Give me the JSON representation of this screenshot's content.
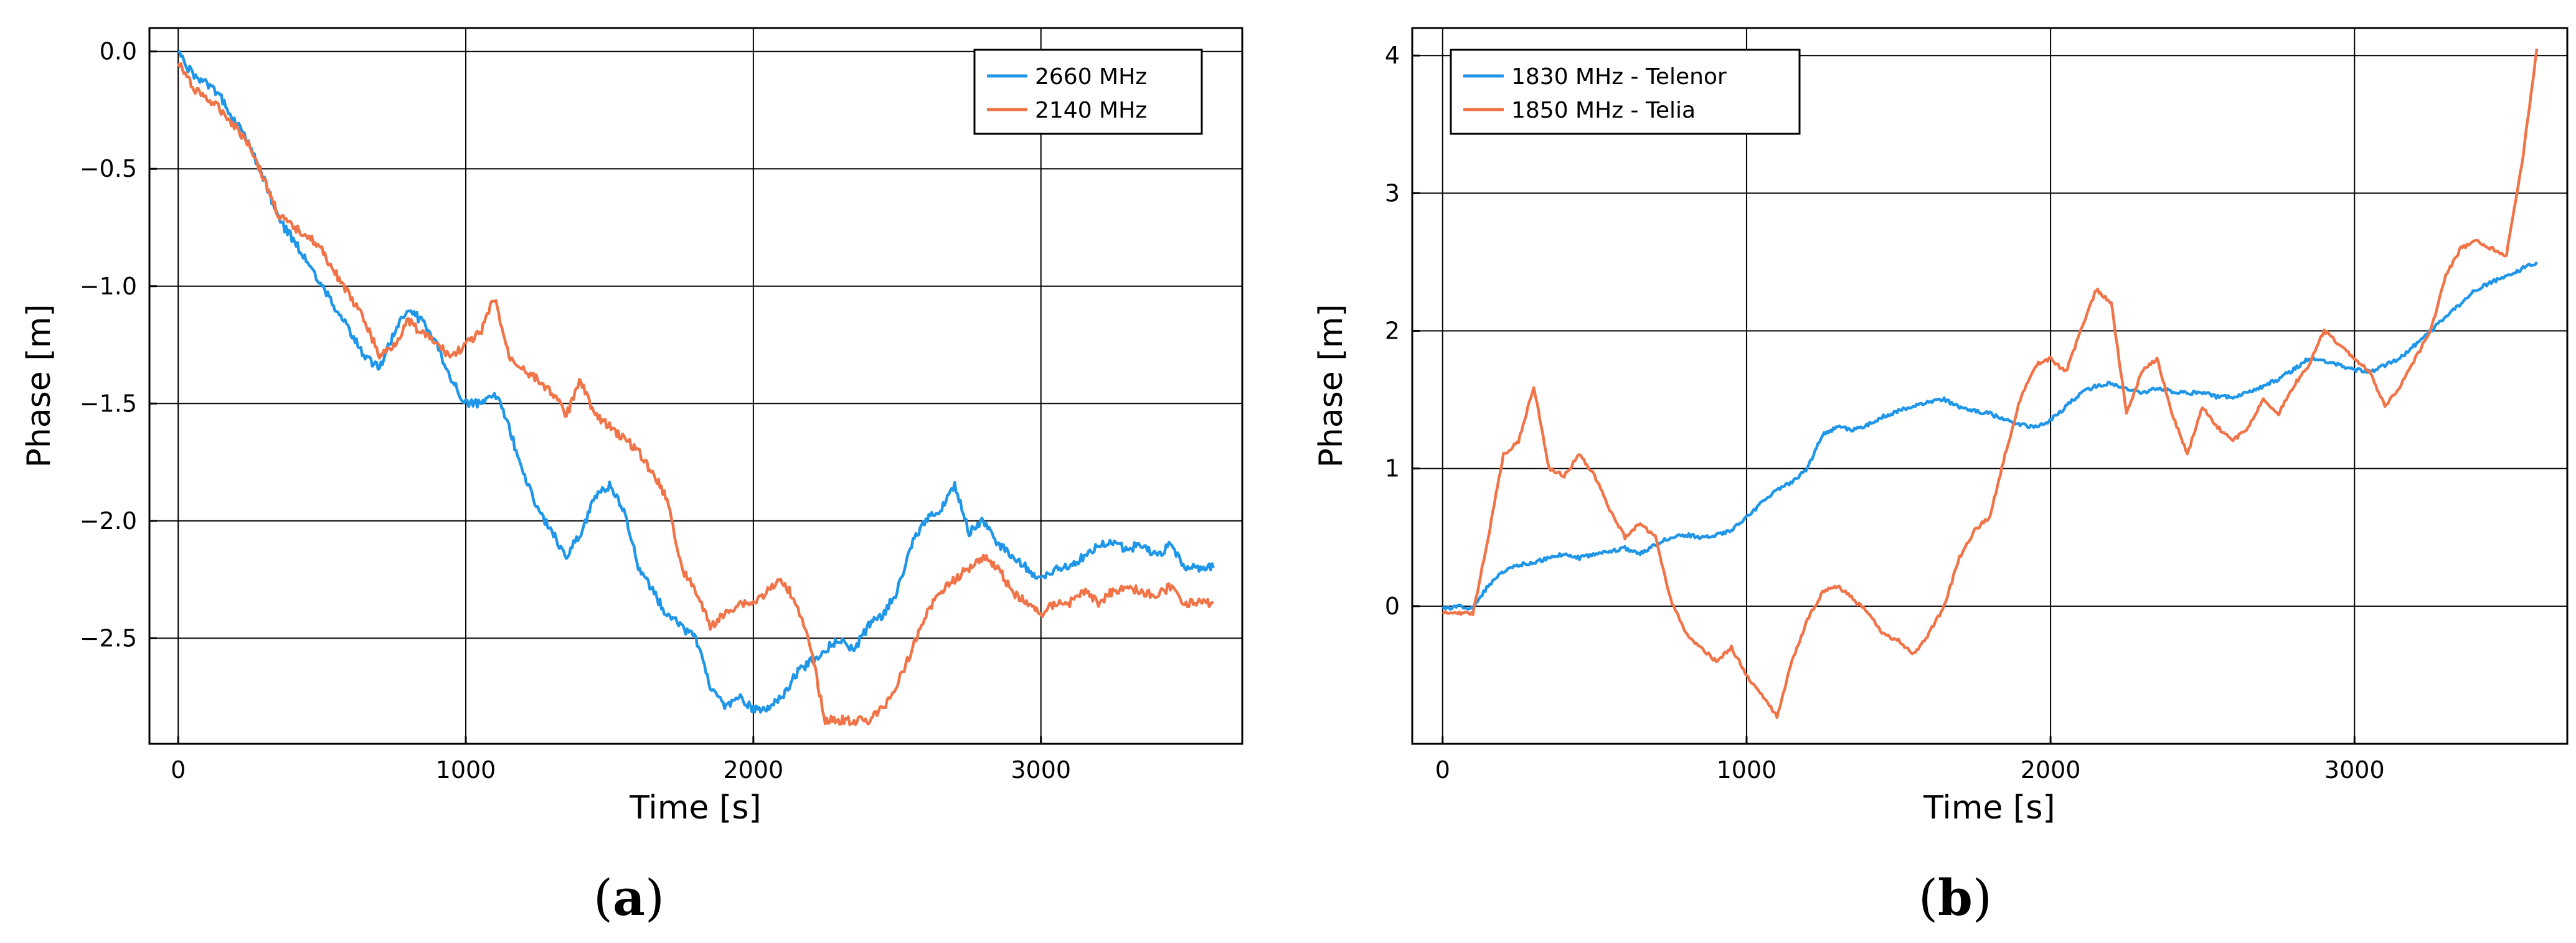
{
  "chart_data": [
    {
      "type": "line",
      "panel_label": "a",
      "title": "",
      "xlabel": "Time [s]",
      "ylabel": "Phase [m]",
      "xlim": [
        -100,
        3700
      ],
      "ylim": [
        -2.95,
        0.1
      ],
      "x_ticks": [
        0,
        1000,
        2000,
        3000
      ],
      "x_tick_labels": [
        "0",
        "1000",
        "2000",
        "3000"
      ],
      "y_ticks": [
        0.0,
        -0.5,
        -1.0,
        -1.5,
        -2.0,
        -2.5
      ],
      "y_tick_labels": [
        "0.0",
        "−0.5",
        "−1.0",
        "−1.5",
        "−2.0",
        "−2.5"
      ],
      "grid": true,
      "legend_position": "top-right",
      "series": [
        {
          "name": "2660 MHz",
          "color": "#1f96e8",
          "x": [
            0,
            50,
            100,
            150,
            200,
            250,
            300,
            350,
            400,
            450,
            500,
            550,
            600,
            650,
            700,
            750,
            800,
            850,
            900,
            950,
            1000,
            1050,
            1100,
            1150,
            1200,
            1250,
            1300,
            1350,
            1400,
            1450,
            1500,
            1550,
            1600,
            1650,
            1700,
            1750,
            1800,
            1850,
            1900,
            1950,
            2000,
            2050,
            2100,
            2150,
            2200,
            2250,
            2300,
            2350,
            2400,
            2450,
            2500,
            2550,
            2600,
            2650,
            2700,
            2750,
            2800,
            2850,
            2900,
            2950,
            3000,
            3050,
            3100,
            3150,
            3200,
            3250,
            3300,
            3350,
            3400,
            3450,
            3500,
            3550,
            3600
          ],
          "values": [
            0.0,
            -0.1,
            -0.14,
            -0.2,
            -0.3,
            -0.4,
            -0.55,
            -0.72,
            -0.8,
            -0.9,
            -1.0,
            -1.1,
            -1.2,
            -1.3,
            -1.35,
            -1.2,
            -1.1,
            -1.15,
            -1.25,
            -1.4,
            -1.5,
            -1.5,
            -1.45,
            -1.6,
            -1.8,
            -1.95,
            -2.05,
            -2.15,
            -2.05,
            -1.9,
            -1.85,
            -1.95,
            -2.2,
            -2.3,
            -2.4,
            -2.45,
            -2.5,
            -2.7,
            -2.8,
            -2.75,
            -2.8,
            -2.8,
            -2.75,
            -2.65,
            -2.6,
            -2.55,
            -2.5,
            -2.55,
            -2.45,
            -2.4,
            -2.3,
            -2.1,
            -2.0,
            -1.95,
            -1.85,
            -2.05,
            -2.0,
            -2.1,
            -2.15,
            -2.2,
            -2.25,
            -2.2,
            -2.2,
            -2.15,
            -2.1,
            -2.1,
            -2.12,
            -2.1,
            -2.15,
            -2.1,
            -2.2,
            -2.2,
            -2.2
          ]
        },
        {
          "name": "2140 MHz",
          "color": "#f07448",
          "x": [
            0,
            50,
            100,
            150,
            200,
            250,
            300,
            350,
            400,
            450,
            500,
            550,
            600,
            650,
            700,
            750,
            800,
            850,
            900,
            950,
            1000,
            1050,
            1100,
            1150,
            1200,
            1250,
            1300,
            1350,
            1400,
            1450,
            1500,
            1550,
            1600,
            1650,
            1700,
            1750,
            1800,
            1850,
            1900,
            1950,
            2000,
            2050,
            2100,
            2150,
            2200,
            2250,
            2300,
            2350,
            2400,
            2450,
            2500,
            2550,
            2600,
            2650,
            2700,
            2750,
            2800,
            2850,
            2900,
            2950,
            3000,
            3050,
            3100,
            3150,
            3200,
            3250,
            3300,
            3350,
            3400,
            3450,
            3500,
            3550,
            3600
          ],
          "values": [
            -0.05,
            -0.15,
            -0.2,
            -0.25,
            -0.32,
            -0.4,
            -0.55,
            -0.7,
            -0.75,
            -0.78,
            -0.85,
            -0.95,
            -1.05,
            -1.15,
            -1.3,
            -1.25,
            -1.15,
            -1.2,
            -1.25,
            -1.3,
            -1.25,
            -1.2,
            -1.05,
            -1.3,
            -1.35,
            -1.4,
            -1.45,
            -1.55,
            -1.4,
            -1.55,
            -1.6,
            -1.65,
            -1.7,
            -1.8,
            -1.9,
            -2.2,
            -2.3,
            -2.45,
            -2.4,
            -2.35,
            -2.35,
            -2.3,
            -2.25,
            -2.35,
            -2.55,
            -2.85,
            -2.85,
            -2.85,
            -2.85,
            -2.8,
            -2.7,
            -2.55,
            -2.4,
            -2.3,
            -2.25,
            -2.2,
            -2.15,
            -2.2,
            -2.3,
            -2.35,
            -2.4,
            -2.35,
            -2.35,
            -2.3,
            -2.35,
            -2.3,
            -2.28,
            -2.3,
            -2.32,
            -2.28,
            -2.35,
            -2.35,
            -2.35
          ]
        }
      ]
    },
    {
      "type": "line",
      "panel_label": "b",
      "title": "",
      "xlabel": "Time [s]",
      "ylabel": "Phase [m]",
      "xlim": [
        -100,
        3700
      ],
      "ylim": [
        -1.0,
        4.2
      ],
      "x_ticks": [
        0,
        1000,
        2000,
        3000
      ],
      "x_tick_labels": [
        "0",
        "1000",
        "2000",
        "3000"
      ],
      "y_ticks": [
        0,
        1,
        2,
        3,
        4
      ],
      "y_tick_labels": [
        "0",
        "1",
        "2",
        "3",
        "4"
      ],
      "grid": true,
      "legend_position": "top-left",
      "series": [
        {
          "name": "1830 MHz - Telenor",
          "color": "#1f96e8",
          "x": [
            0,
            50,
            100,
            150,
            200,
            250,
            300,
            350,
            400,
            450,
            500,
            550,
            600,
            650,
            700,
            750,
            800,
            850,
            900,
            950,
            1000,
            1050,
            1100,
            1150,
            1200,
            1250,
            1300,
            1350,
            1400,
            1450,
            1500,
            1550,
            1600,
            1650,
            1700,
            1750,
            1800,
            1850,
            1900,
            1950,
            2000,
            2050,
            2100,
            2150,
            2200,
            2250,
            2300,
            2350,
            2400,
            2450,
            2500,
            2550,
            2600,
            2650,
            2700,
            2750,
            2800,
            2850,
            2900,
            2950,
            3000,
            3050,
            3100,
            3150,
            3200,
            3250,
            3300,
            3350,
            3400,
            3450,
            3500,
            3550,
            3600
          ],
          "values": [
            -0.02,
            0.0,
            -0.02,
            0.15,
            0.25,
            0.3,
            0.32,
            0.35,
            0.38,
            0.35,
            0.38,
            0.4,
            0.42,
            0.38,
            0.45,
            0.5,
            0.52,
            0.5,
            0.52,
            0.55,
            0.65,
            0.75,
            0.85,
            0.9,
            1.0,
            1.25,
            1.3,
            1.28,
            1.32,
            1.38,
            1.42,
            1.45,
            1.48,
            1.5,
            1.45,
            1.42,
            1.4,
            1.35,
            1.32,
            1.3,
            1.35,
            1.45,
            1.55,
            1.6,
            1.62,
            1.58,
            1.55,
            1.58,
            1.56,
            1.55,
            1.55,
            1.52,
            1.52,
            1.55,
            1.6,
            1.65,
            1.72,
            1.8,
            1.78,
            1.75,
            1.72,
            1.7,
            1.75,
            1.8,
            1.9,
            2.0,
            2.1,
            2.2,
            2.3,
            2.35,
            2.4,
            2.45,
            2.5
          ]
        },
        {
          "name": "1850 MHz - Telia",
          "color": "#f07448",
          "x": [
            0,
            50,
            100,
            150,
            200,
            250,
            300,
            350,
            400,
            450,
            500,
            550,
            600,
            650,
            700,
            750,
            800,
            850,
            900,
            950,
            1000,
            1050,
            1100,
            1150,
            1200,
            1250,
            1300,
            1350,
            1400,
            1450,
            1500,
            1550,
            1600,
            1650,
            1700,
            1750,
            1800,
            1850,
            1900,
            1950,
            2000,
            2050,
            2100,
            2150,
            2200,
            2250,
            2300,
            2350,
            2400,
            2450,
            2500,
            2550,
            2600,
            2650,
            2700,
            2750,
            2800,
            2850,
            2900,
            2950,
            3000,
            3050,
            3100,
            3150,
            3200,
            3250,
            3300,
            3350,
            3400,
            3450,
            3500,
            3550,
            3600
          ],
          "values": [
            -0.05,
            -0.05,
            -0.05,
            0.5,
            1.1,
            1.2,
            1.6,
            1.0,
            0.95,
            1.1,
            0.95,
            0.7,
            0.5,
            0.6,
            0.5,
            0.05,
            -0.2,
            -0.3,
            -0.4,
            -0.3,
            -0.5,
            -0.65,
            -0.8,
            -0.4,
            -0.1,
            0.1,
            0.15,
            0.05,
            -0.05,
            -0.2,
            -0.25,
            -0.35,
            -0.2,
            0.0,
            0.35,
            0.55,
            0.65,
            1.1,
            1.5,
            1.75,
            1.8,
            1.7,
            2.0,
            2.3,
            2.2,
            1.4,
            1.7,
            1.8,
            1.4,
            1.1,
            1.45,
            1.3,
            1.2,
            1.3,
            1.5,
            1.4,
            1.6,
            1.75,
            2.0,
            1.9,
            1.8,
            1.7,
            1.45,
            1.6,
            1.8,
            2.0,
            2.4,
            2.6,
            2.65,
            2.6,
            2.55,
            3.2,
            4.05
          ]
        }
      ]
    }
  ]
}
